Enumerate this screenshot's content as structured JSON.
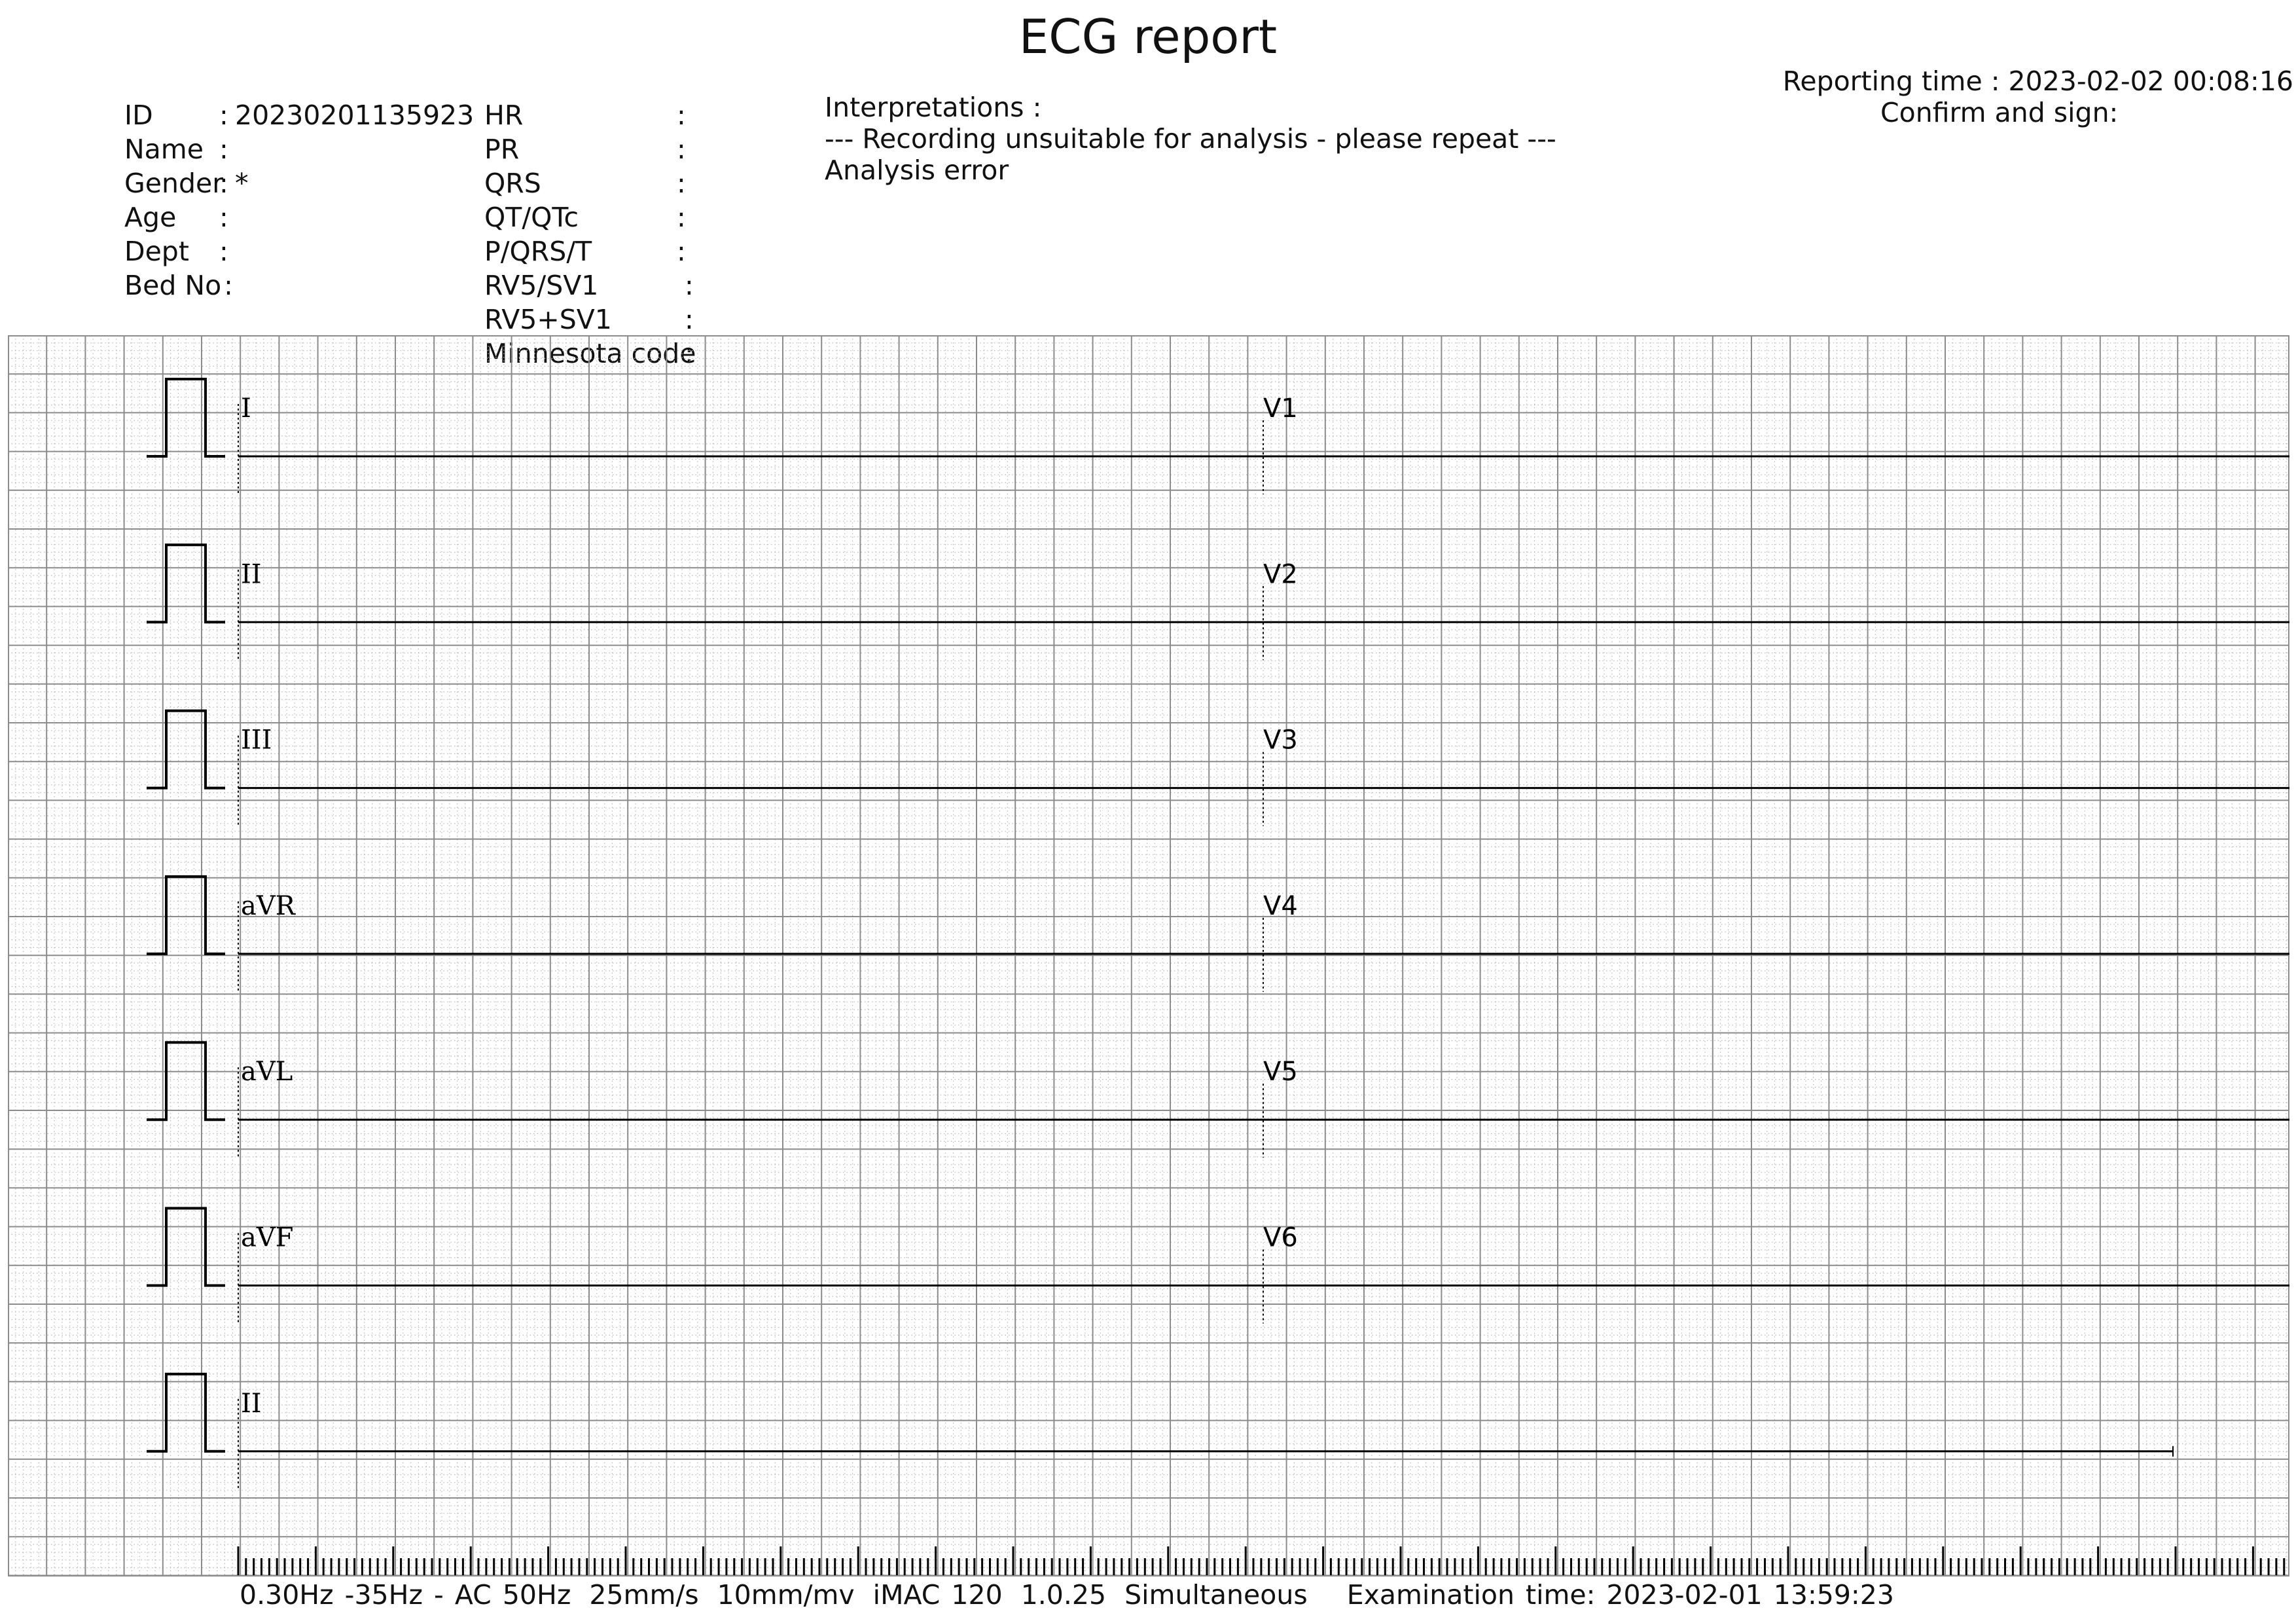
{
  "title": "ECG report",
  "reporting_time": "Reporting time : 2023-02-02 00:08:16",
  "confirm_sign": "Confirm and sign:",
  "patient": [
    {
      "label": "ID",
      "value": "20230201135923"
    },
    {
      "label": "Name",
      "value": ""
    },
    {
      "label": "Gender",
      "value": "*"
    },
    {
      "label": "Age",
      "value": ""
    },
    {
      "label": "Dept",
      "value": ""
    },
    {
      "label": "Bed No",
      "value": ""
    }
  ],
  "measurements": [
    {
      "label": "HR",
      "value": ""
    },
    {
      "label": "PR",
      "value": ""
    },
    {
      "label": "QRS",
      "value": ""
    },
    {
      "label": "QT/QTc",
      "value": ""
    },
    {
      "label": "P/QRS/T",
      "value": ""
    },
    {
      "label": "RV5/SV1",
      "value": ""
    },
    {
      "label": "RV5+SV1",
      "value": ""
    },
    {
      "label": "Minnesota code",
      "value": ""
    }
  ],
  "interpretations": {
    "heading": "Interpretations :",
    "lines": [
      "--- Recording unsuitable for analysis - please repeat ---",
      "Analysis error"
    ]
  },
  "leads": {
    "left": [
      "I",
      "II",
      "III",
      "aVR",
      "aVL",
      "aVF"
    ],
    "right": [
      "V1",
      "V2",
      "V3",
      "V4",
      "V5",
      "V6"
    ],
    "rhythm": "II"
  },
  "footer": {
    "filter": "0.30Hz -35Hz - AC 50Hz",
    "speed": "25mm/s",
    "gain": "10mm/mv",
    "device": "iMAC 120",
    "version": "1.0.25",
    "mode": "Simultaneous",
    "exam_time": "Examination time: 2023-02-01 13:59:23"
  },
  "colors": {
    "grid_major": "#8c8c8c",
    "grid_minor": "#b8b8b8",
    "trace": "#000000"
  }
}
